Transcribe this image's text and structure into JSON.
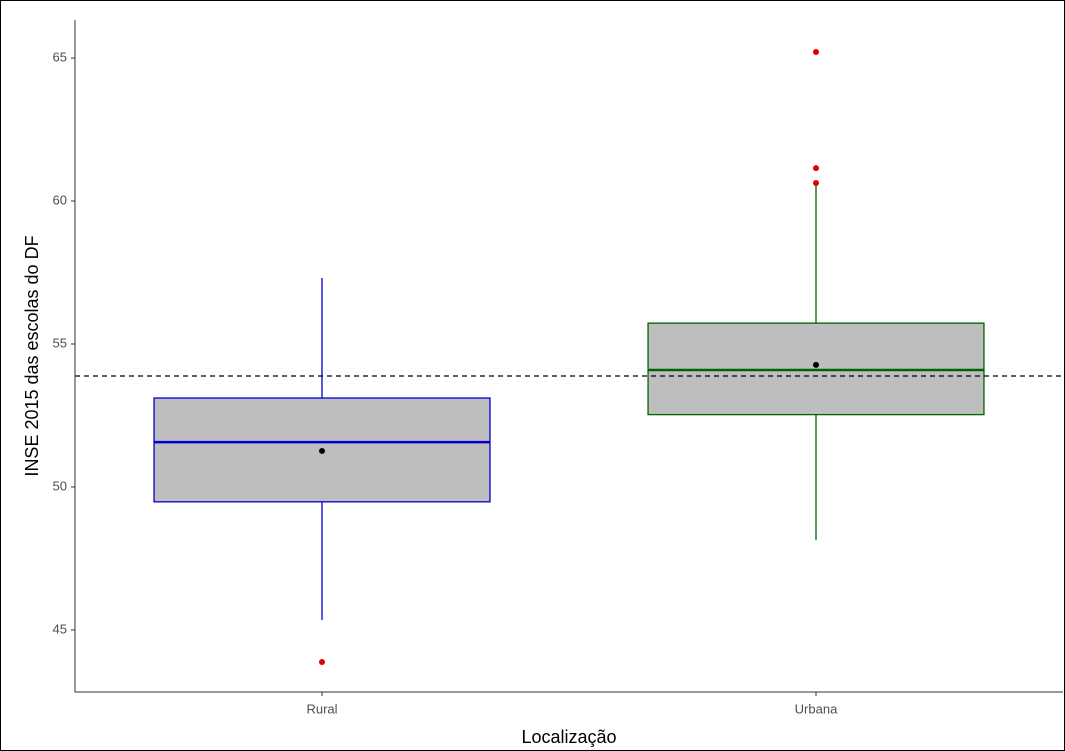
{
  "chart_data": {
    "type": "box",
    "x_label": "Localização",
    "y_label": "INSE 2015 das escolas do DF",
    "categories": [
      "Rural",
      "Urbana"
    ],
    "boxes": [
      {
        "color": "#0000cd",
        "whisker_low": 45.35,
        "q1": 49.48,
        "median": 51.57,
        "q3": 53.11,
        "whisker_high": 57.31,
        "mean": 51.26,
        "outliers": [
          43.88
        ]
      },
      {
        "color": "#006400",
        "whisker_low": 48.15,
        "q1": 52.53,
        "median": 54.09,
        "q3": 55.73,
        "whisker_high": 60.63,
        "mean": 54.27,
        "outliers": [
          65.21,
          61.15,
          60.63
        ]
      }
    ],
    "box_fill": "#bebebe",
    "outlier_color": "#e00000",
    "mean_color": "#000000",
    "reference_line": 53.88,
    "ylim": [
      42.83,
      66.33
    ],
    "yticks": [
      45,
      50,
      55,
      60,
      65
    ]
  }
}
